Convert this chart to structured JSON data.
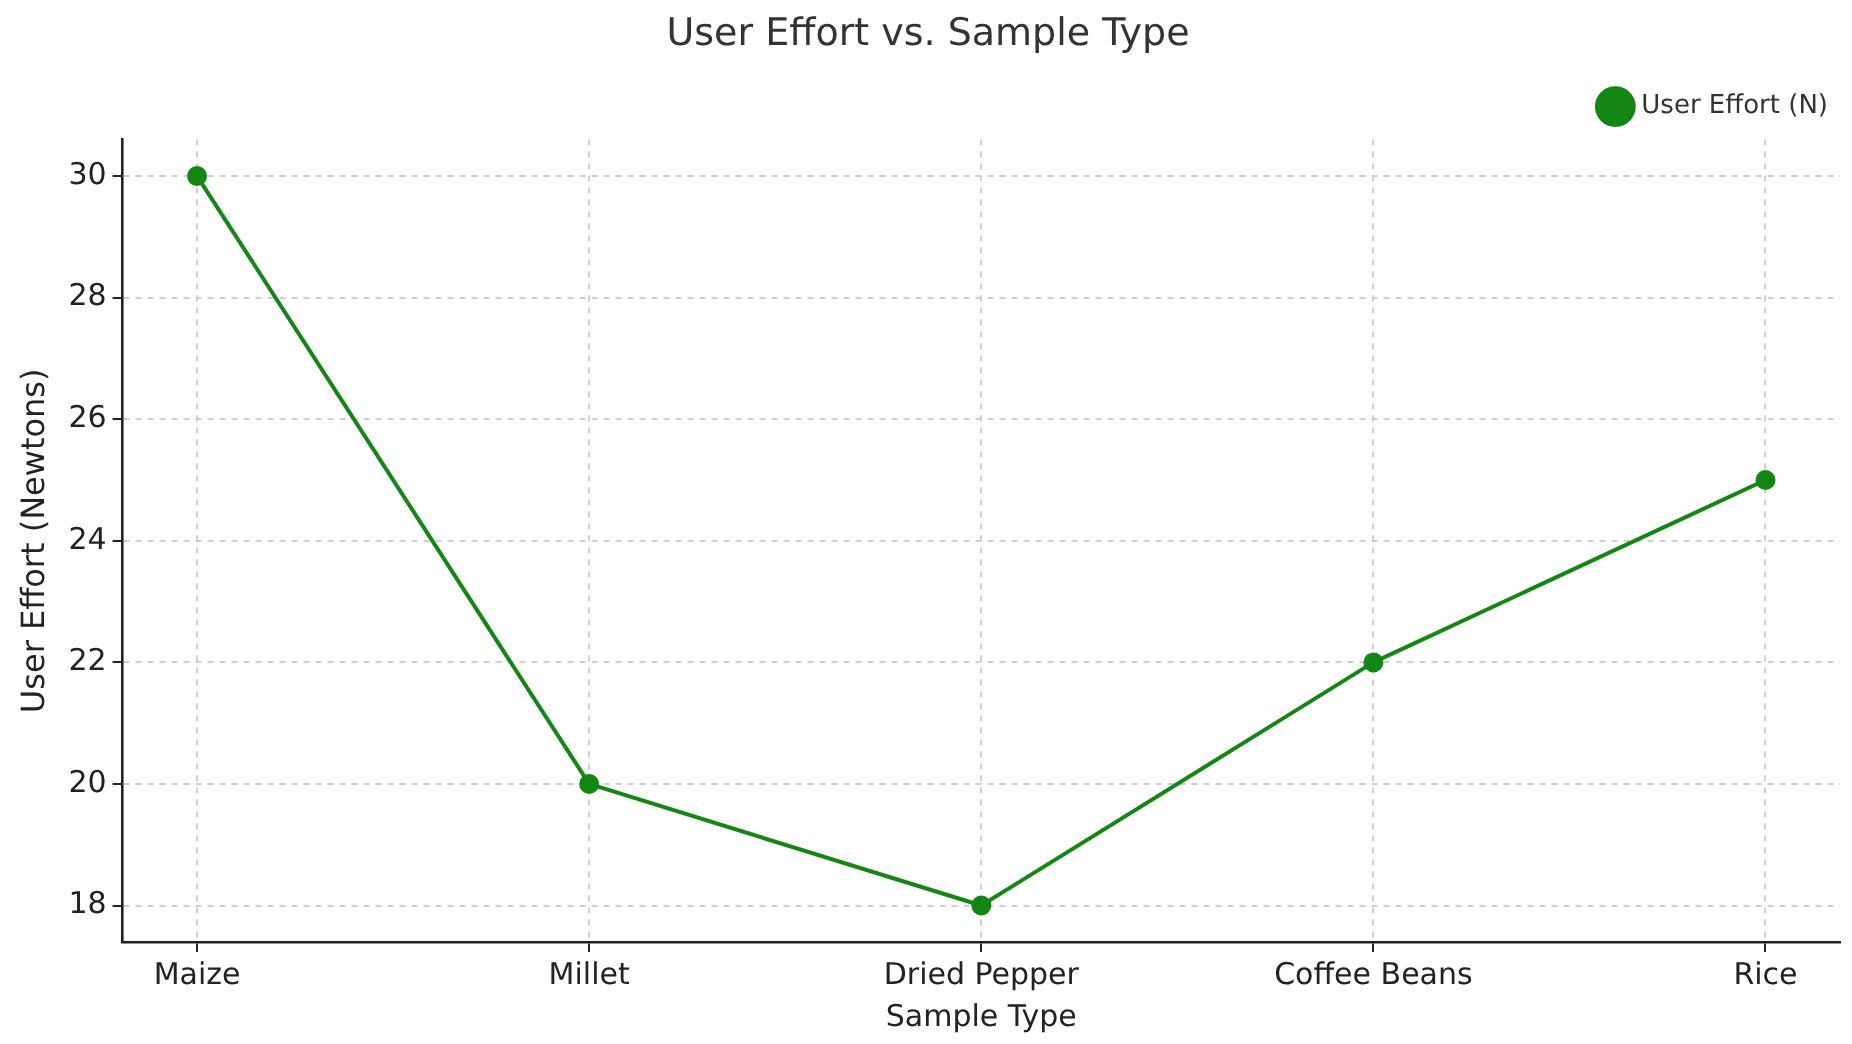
{
  "chart_data": {
    "type": "line",
    "title": "User Effort vs. Sample Type",
    "xlabel": "Sample Type",
    "ylabel": "User Effort (Newtons)",
    "categories": [
      "Maize",
      "Millet",
      "Dried Pepper",
      "Coffee Beans",
      "Rice"
    ],
    "series": [
      {
        "name": "User Effort (N)",
        "color": "#138613",
        "values": [
          30,
          20,
          18,
          22,
          25
        ]
      }
    ],
    "ylim": [
      17.4,
      30.6
    ],
    "yticks": [
      18,
      20,
      22,
      24,
      26,
      28,
      30
    ],
    "grid": true,
    "legend": "top right",
    "marker": "circle",
    "line_style": "solid"
  }
}
